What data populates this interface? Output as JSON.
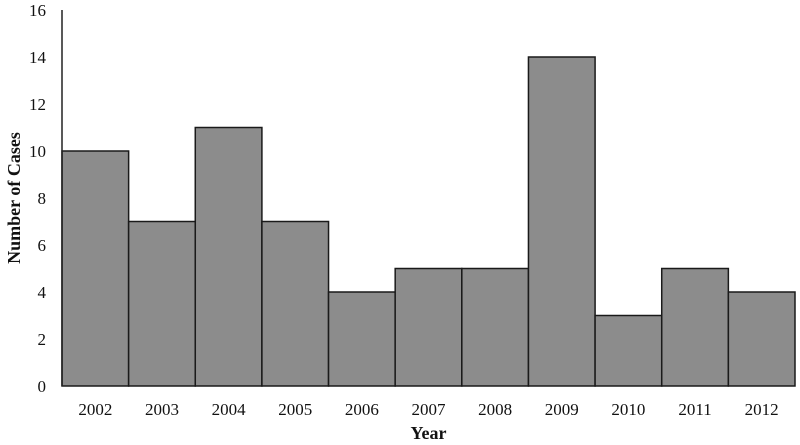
{
  "chart_data": {
    "type": "bar",
    "categories": [
      "2002",
      "2003",
      "2004",
      "2005",
      "2006",
      "2007",
      "2008",
      "2009",
      "2010",
      "2011",
      "2012"
    ],
    "values": [
      10,
      7,
      11,
      7,
      4,
      5,
      5,
      14,
      3,
      5,
      4
    ],
    "xlabel": "Year",
    "ylabel": "Number of Cases",
    "ylim": [
      0,
      16
    ],
    "yticks": [
      0,
      2,
      4,
      6,
      8,
      10,
      12,
      14,
      16
    ],
    "grid": false,
    "legend": "none",
    "bar_color": "#8c8c8c"
  }
}
